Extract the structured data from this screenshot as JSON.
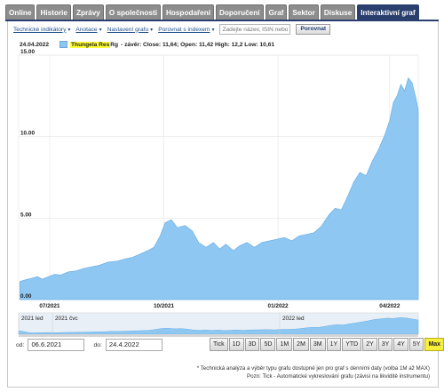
{
  "tabs": [
    "Online",
    "Historie",
    "Zprávy",
    "O společnosti",
    "Hospodaření",
    "Doporučení",
    "Graf",
    "Sektor",
    "Diskuse",
    "Interaktivní graf"
  ],
  "toolbar": {
    "indicators": "Technické indikátory",
    "annotations": "Anotace",
    "settings": "Nastavení grafu",
    "compare_index": "Porovnat s indexem",
    "search_placeholder": "Zadejte název, ISIN nebo",
    "compare_button": "Porovnat"
  },
  "legend": {
    "date": "24.04.2022",
    "name": "Thungela Res",
    "ticker": "Rg",
    "values": "- závěr: Close: 11,64; Open: 11,42 High: 12,2 Low: 10,61",
    "color": "#8ec8f2"
  },
  "chart_data": {
    "type": "area",
    "series_color": "#8ec8f2",
    "ylim": [
      0,
      15
    ],
    "y_ticks": [
      "0.00",
      "5.00",
      "10.00",
      "15.00"
    ],
    "x_ticks": [
      "07/2021",
      "10/2021",
      "01/2022",
      "04/2022"
    ],
    "x_start": "2021-06-06",
    "x_end": "2022-04-24",
    "points": [
      [
        "2021-06-07",
        1.1
      ],
      [
        "2021-06-11",
        1.2
      ],
      [
        "2021-06-16",
        1.3
      ],
      [
        "2021-06-21",
        1.4
      ],
      [
        "2021-06-25",
        1.25
      ],
      [
        "2021-06-30",
        1.4
      ],
      [
        "2021-07-05",
        1.55
      ],
      [
        "2021-07-10",
        1.5
      ],
      [
        "2021-07-16",
        1.7
      ],
      [
        "2021-07-22",
        1.75
      ],
      [
        "2021-07-28",
        1.9
      ],
      [
        "2021-08-03",
        2.0
      ],
      [
        "2021-08-10",
        2.1
      ],
      [
        "2021-08-17",
        2.3
      ],
      [
        "2021-08-24",
        2.35
      ],
      [
        "2021-08-31",
        2.5
      ],
      [
        "2021-09-06",
        2.6
      ],
      [
        "2021-09-12",
        2.8
      ],
      [
        "2021-09-18",
        3.0
      ],
      [
        "2021-09-23",
        3.2
      ],
      [
        "2021-09-28",
        3.9
      ],
      [
        "2021-10-02",
        4.7
      ],
      [
        "2021-10-07",
        4.9
      ],
      [
        "2021-10-12",
        4.4
      ],
      [
        "2021-10-18",
        4.55
      ],
      [
        "2021-10-24",
        4.2
      ],
      [
        "2021-10-29",
        3.5
      ],
      [
        "2021-11-04",
        3.2
      ],
      [
        "2021-11-10",
        3.5
      ],
      [
        "2021-11-15",
        3.1
      ],
      [
        "2021-11-20",
        3.4
      ],
      [
        "2021-11-26",
        3.0
      ],
      [
        "2021-12-01",
        3.3
      ],
      [
        "2021-12-07",
        3.5
      ],
      [
        "2021-12-13",
        3.2
      ],
      [
        "2021-12-19",
        3.5
      ],
      [
        "2021-12-25",
        3.6
      ],
      [
        "2021-12-31",
        3.7
      ],
      [
        "2022-01-06",
        3.8
      ],
      [
        "2022-01-12",
        3.6
      ],
      [
        "2022-01-18",
        3.9
      ],
      [
        "2022-01-24",
        4.0
      ],
      [
        "2022-01-30",
        4.1
      ],
      [
        "2022-02-05",
        4.5
      ],
      [
        "2022-02-11",
        5.2
      ],
      [
        "2022-02-16",
        5.6
      ],
      [
        "2022-02-21",
        5.5
      ],
      [
        "2022-02-26",
        6.3
      ],
      [
        "2022-03-03",
        7.2
      ],
      [
        "2022-03-08",
        7.8
      ],
      [
        "2022-03-13",
        7.6
      ],
      [
        "2022-03-18",
        8.5
      ],
      [
        "2022-03-23",
        9.2
      ],
      [
        "2022-03-28",
        10.1
      ],
      [
        "2022-04-01",
        11.0
      ],
      [
        "2022-04-04",
        12.1
      ],
      [
        "2022-04-07",
        12.5
      ],
      [
        "2022-04-10",
        13.2
      ],
      [
        "2022-04-13",
        12.8
      ],
      [
        "2022-04-16",
        13.6
      ],
      [
        "2022-04-19",
        13.3
      ],
      [
        "2022-04-22",
        12.4
      ],
      [
        "2022-04-24",
        11.64
      ]
    ],
    "navigator_labels": [
      "2021 led",
      "2021 čvc",
      "2022 led"
    ]
  },
  "range": {
    "from_label": "od:",
    "from_value": "06.6.2021",
    "to_label": "do:",
    "to_value": "24.4.2022"
  },
  "zoom_buttons": [
    "Tick",
    "1D",
    "3D",
    "5D",
    "1M",
    "2M",
    "3M",
    "1Y",
    "YTD",
    "2Y",
    "3Y",
    "4Y",
    "5Y",
    "Max"
  ],
  "zoom_active": "Max",
  "notes": {
    "line1": "* Technická analýza a výběr typu grafu dostupné jen pro graf s denními daty (volba 1M až MAX)",
    "line2": "Pozn: Tick - Automatické vykreslování grafu (závisí na likviditě instrumentu)"
  }
}
